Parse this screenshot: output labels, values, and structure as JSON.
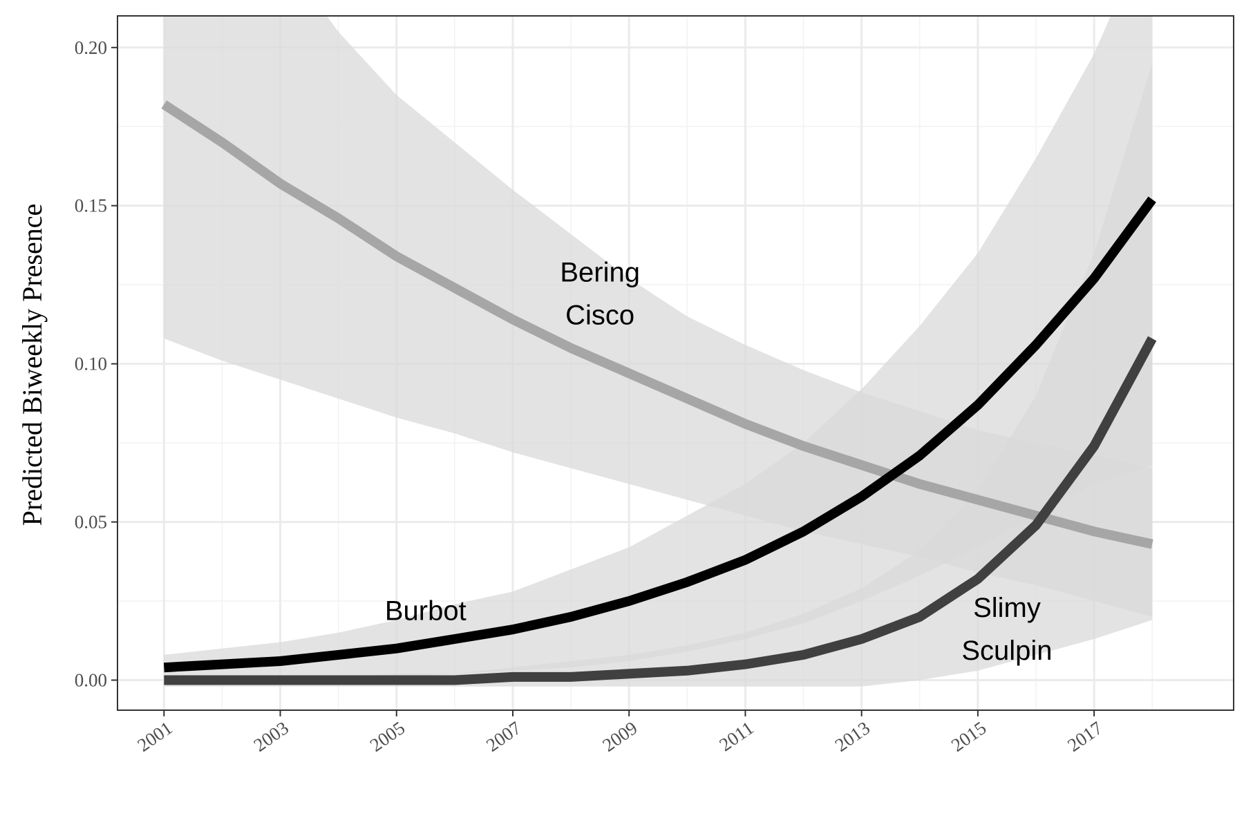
{
  "chart_data": {
    "type": "line",
    "title": "",
    "xlabel": "",
    "ylabel": "Predicted Biweekly Presence",
    "xlim": [
      2000.2,
      2019.4
    ],
    "ylim": [
      -0.0095,
      0.21
    ],
    "x_ticks": [
      "2001",
      "2003",
      "2005",
      "2007",
      "2009",
      "2011",
      "2013",
      "2015",
      "2017"
    ],
    "y_ticks": [
      "0.00",
      "0.05",
      "0.10",
      "0.15",
      "0.20"
    ],
    "grid": true,
    "legend": "none",
    "x": [
      2001,
      2002,
      2003,
      2004,
      2005,
      2006,
      2007,
      2008,
      2009,
      2010,
      2011,
      2012,
      2013,
      2014,
      2015,
      2016,
      2017,
      2018
    ],
    "series": [
      {
        "name": "Bering Cisco",
        "label_lines": [
          "Bering",
          "Cisco"
        ],
        "label_at": [
          2008.5,
          0.126
        ],
        "color": "#a6a6a6",
        "band_color": "#d9d9d9",
        "values": [
          0.182,
          0.17,
          0.157,
          0.146,
          0.134,
          0.124,
          0.114,
          0.105,
          0.097,
          0.089,
          0.081,
          0.074,
          0.068,
          0.062,
          0.057,
          0.052,
          0.047,
          0.043
        ],
        "lower": [
          0.108,
          0.101,
          0.095,
          0.089,
          0.083,
          0.078,
          0.072,
          0.067,
          0.062,
          0.057,
          0.052,
          0.047,
          0.043,
          0.039,
          0.034,
          0.03,
          0.025,
          0.02
        ],
        "upper": [
          0.28,
          0.255,
          0.23,
          0.205,
          0.185,
          0.17,
          0.155,
          0.141,
          0.127,
          0.115,
          0.106,
          0.098,
          0.091,
          0.085,
          0.079,
          0.075,
          0.071,
          0.067
        ]
      },
      {
        "name": "Burbot",
        "label_lines": [
          "Burbot"
        ],
        "label_at": [
          2005.5,
          0.019
        ],
        "color": "#000000",
        "band_color": "#d9d9d9",
        "values": [
          0.004,
          0.005,
          0.006,
          0.008,
          0.01,
          0.013,
          0.016,
          0.02,
          0.025,
          0.031,
          0.038,
          0.047,
          0.058,
          0.071,
          0.087,
          0.106,
          0.127,
          0.152
        ],
        "lower": [
          0.0,
          0.0,
          0.0,
          0.001,
          0.001,
          0.002,
          0.003,
          0.004,
          0.006,
          0.009,
          0.013,
          0.018,
          0.025,
          0.033,
          0.042,
          0.052,
          0.062,
          0.068
        ],
        "upper": [
          0.008,
          0.01,
          0.012,
          0.015,
          0.019,
          0.024,
          0.028,
          0.035,
          0.042,
          0.052,
          0.062,
          0.075,
          0.092,
          0.112,
          0.135,
          0.165,
          0.198,
          0.24
        ]
      },
      {
        "name": "Slimy Sculpin",
        "label_lines": [
          "Slimy",
          "Sculpin"
        ],
        "label_at": [
          2015.5,
          0.02
        ],
        "color": "#404040",
        "band_color": "#d9d9d9",
        "values": [
          0.0,
          0.0,
          0.0,
          0.0,
          0.0,
          0.0,
          0.001,
          0.001,
          0.002,
          0.003,
          0.005,
          0.008,
          0.013,
          0.02,
          0.032,
          0.049,
          0.074,
          0.108
        ],
        "lower": [
          -0.002,
          -0.002,
          -0.002,
          -0.002,
          -0.002,
          -0.002,
          -0.002,
          -0.002,
          -0.002,
          -0.002,
          -0.002,
          -0.002,
          -0.002,
          0.0,
          0.003,
          0.008,
          0.013,
          0.019
        ],
        "upper": [
          0.0,
          0.0,
          0.001,
          0.001,
          0.002,
          0.002,
          0.004,
          0.006,
          0.008,
          0.011,
          0.015,
          0.021,
          0.029,
          0.041,
          0.06,
          0.09,
          0.135,
          0.195
        ]
      }
    ]
  }
}
